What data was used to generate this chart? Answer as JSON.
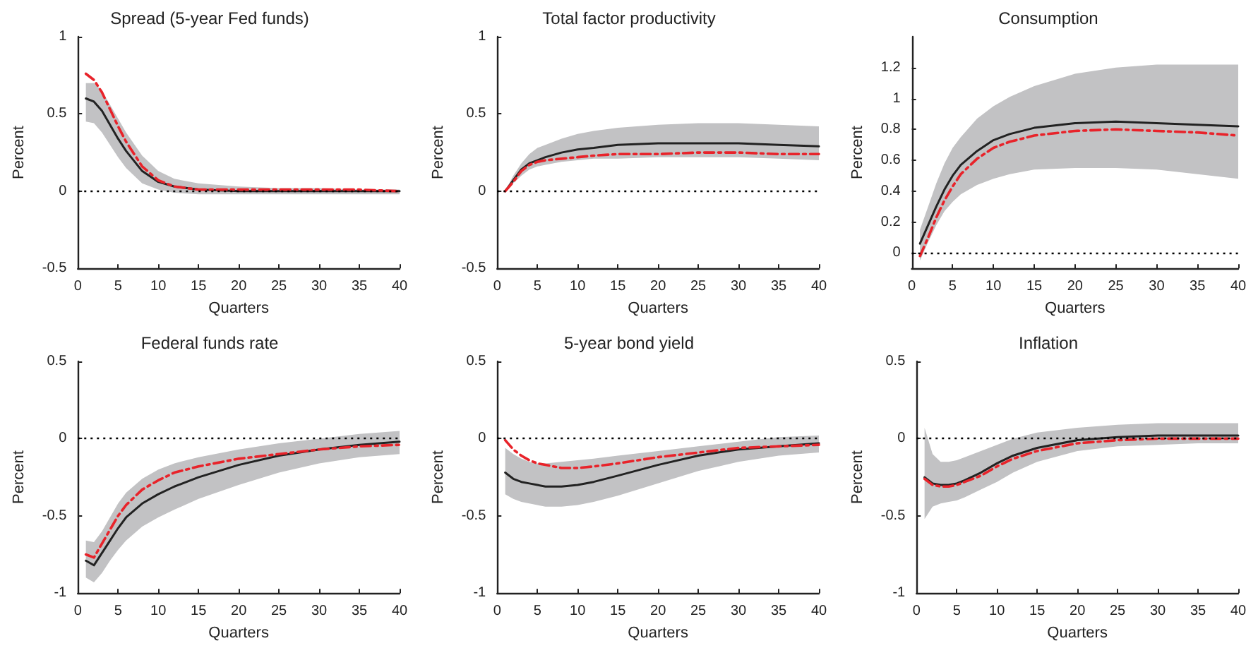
{
  "chart_data": [
    {
      "type": "line",
      "title": "Spread (5-year Fed funds)",
      "xlabel": "Quarters",
      "ylabel": "Percent",
      "xlim": [
        0,
        40
      ],
      "xticks": [
        0,
        5,
        10,
        15,
        20,
        25,
        30,
        35,
        40
      ],
      "ylim": [
        -0.5,
        1
      ],
      "yticks": [
        -0.5,
        0,
        0.5,
        1
      ],
      "grid": false,
      "marker": "none",
      "x": [
        1,
        2,
        3,
        4,
        5,
        6,
        8,
        10,
        12,
        15,
        20,
        25,
        30,
        35,
        40
      ],
      "ref_lines": [
        {
          "axis": "y",
          "value": 0,
          "line_style": "dotted",
          "color": "#000000"
        }
      ],
      "series": [
        {
          "color": "#222222",
          "line_style": "solid",
          "values": [
            0.6,
            0.58,
            0.52,
            0.43,
            0.34,
            0.26,
            0.13,
            0.06,
            0.03,
            0.01,
            0,
            0,
            0,
            0,
            0
          ],
          "lower": [
            0.45,
            0.44,
            0.38,
            0.3,
            0.22,
            0.15,
            0.05,
            0.01,
            -0.01,
            -0.02,
            -0.02,
            -0.02,
            -0.02,
            -0.02,
            -0.02
          ],
          "upper": [
            0.7,
            0.7,
            0.65,
            0.56,
            0.47,
            0.38,
            0.23,
            0.13,
            0.08,
            0.05,
            0.03,
            0.02,
            0.02,
            0.01,
            0.01
          ]
        },
        {
          "color": "#e8232a",
          "line_style": "dashed",
          "values": [
            0.76,
            0.72,
            0.64,
            0.53,
            0.42,
            0.32,
            0.16,
            0.07,
            0.03,
            0.01,
            0.01,
            0.01,
            0.01,
            0.01,
            0
          ]
        }
      ]
    },
    {
      "type": "line",
      "title": "Total factor productivity",
      "xlabel": "Quarters",
      "ylabel": "Percent",
      "xlim": [
        0,
        40
      ],
      "xticks": [
        0,
        5,
        10,
        15,
        20,
        25,
        30,
        35,
        40
      ],
      "ylim": [
        -0.5,
        1
      ],
      "yticks": [
        -0.5,
        0,
        0.5,
        1
      ],
      "grid": false,
      "marker": "none",
      "x": [
        1,
        2,
        3,
        4,
        5,
        6,
        8,
        10,
        12,
        15,
        20,
        25,
        30,
        35,
        40
      ],
      "ref_lines": [
        {
          "axis": "y",
          "value": 0,
          "line_style": "dotted",
          "color": "#000000"
        }
      ],
      "series": [
        {
          "color": "#222222",
          "line_style": "solid",
          "values": [
            0,
            0.07,
            0.14,
            0.18,
            0.2,
            0.22,
            0.25,
            0.27,
            0.28,
            0.3,
            0.31,
            0.31,
            0.31,
            0.3,
            0.29
          ],
          "lower": [
            0,
            0.05,
            0.1,
            0.14,
            0.16,
            0.17,
            0.19,
            0.2,
            0.21,
            0.21,
            0.22,
            0.22,
            0.22,
            0.21,
            0.2
          ],
          "upper": [
            0,
            0.1,
            0.18,
            0.24,
            0.28,
            0.3,
            0.34,
            0.37,
            0.39,
            0.41,
            0.43,
            0.44,
            0.44,
            0.43,
            0.42
          ]
        },
        {
          "color": "#e8232a",
          "line_style": "dashed",
          "values": [
            0,
            0.06,
            0.13,
            0.17,
            0.19,
            0.2,
            0.21,
            0.22,
            0.23,
            0.24,
            0.24,
            0.25,
            0.25,
            0.24,
            0.24
          ]
        }
      ]
    },
    {
      "type": "line",
      "title": "Consumption",
      "xlabel": "Quarters",
      "ylabel": "Percent",
      "xlim": [
        0,
        40
      ],
      "xticks": [
        0,
        5,
        10,
        15,
        20,
        25,
        30,
        35,
        40
      ],
      "ylim": [
        -0.1,
        1.4
      ],
      "yticks": [
        0,
        0.2,
        0.4,
        0.6,
        0.8,
        1,
        1.2
      ],
      "grid": false,
      "marker": "none",
      "x": [
        1,
        2,
        3,
        4,
        5,
        6,
        8,
        10,
        12,
        15,
        20,
        25,
        30,
        35,
        40
      ],
      "ref_lines": [
        {
          "axis": "y",
          "value": 0,
          "line_style": "dotted",
          "color": "#000000"
        }
      ],
      "series": [
        {
          "color": "#222222",
          "line_style": "solid",
          "values": [
            0.06,
            0.18,
            0.3,
            0.41,
            0.5,
            0.57,
            0.66,
            0.73,
            0.77,
            0.81,
            0.84,
            0.85,
            0.84,
            0.83,
            0.82
          ],
          "lower": [
            -0.05,
            0.07,
            0.18,
            0.27,
            0.33,
            0.38,
            0.44,
            0.48,
            0.51,
            0.54,
            0.55,
            0.55,
            0.54,
            0.51,
            0.48
          ],
          "upper": [
            0.15,
            0.3,
            0.45,
            0.58,
            0.68,
            0.75,
            0.87,
            0.95,
            1.01,
            1.08,
            1.16,
            1.2,
            1.22,
            1.22,
            1.22
          ]
        },
        {
          "color": "#e8232a",
          "line_style": "dashed",
          "values": [
            -0.02,
            0.1,
            0.23,
            0.34,
            0.43,
            0.51,
            0.61,
            0.68,
            0.72,
            0.76,
            0.79,
            0.8,
            0.79,
            0.78,
            0.76
          ]
        }
      ]
    },
    {
      "type": "line",
      "title": "Federal funds rate",
      "xlabel": "Quarters",
      "ylabel": "Percent",
      "xlim": [
        0,
        40
      ],
      "xticks": [
        0,
        5,
        10,
        15,
        20,
        25,
        30,
        35,
        40
      ],
      "ylim": [
        -1,
        0.5
      ],
      "yticks": [
        -1,
        -0.5,
        0,
        0.5
      ],
      "grid": false,
      "marker": "none",
      "x": [
        1,
        2,
        3,
        4,
        5,
        6,
        8,
        10,
        12,
        15,
        20,
        25,
        30,
        35,
        40
      ],
      "ref_lines": [
        {
          "axis": "y",
          "value": 0,
          "line_style": "dotted",
          "color": "#000000"
        }
      ],
      "series": [
        {
          "color": "#222222",
          "line_style": "solid",
          "values": [
            -0.79,
            -0.82,
            -0.74,
            -0.66,
            -0.58,
            -0.51,
            -0.42,
            -0.36,
            -0.31,
            -0.25,
            -0.17,
            -0.11,
            -0.07,
            -0.04,
            -0.02
          ],
          "lower": [
            -0.9,
            -0.93,
            -0.87,
            -0.79,
            -0.72,
            -0.66,
            -0.57,
            -0.51,
            -0.46,
            -0.39,
            -0.3,
            -0.22,
            -0.16,
            -0.12,
            -0.1
          ],
          "upper": [
            -0.66,
            -0.67,
            -0.6,
            -0.51,
            -0.42,
            -0.35,
            -0.26,
            -0.2,
            -0.16,
            -0.12,
            -0.07,
            -0.03,
            0,
            0.03,
            0.05
          ]
        },
        {
          "color": "#e8232a",
          "line_style": "dashed",
          "values": [
            -0.75,
            -0.77,
            -0.68,
            -0.59,
            -0.5,
            -0.43,
            -0.33,
            -0.27,
            -0.22,
            -0.18,
            -0.13,
            -0.1,
            -0.07,
            -0.05,
            -0.04
          ]
        }
      ]
    },
    {
      "type": "line",
      "title": "5-year bond yield",
      "xlabel": "Quarters",
      "ylabel": "Percent",
      "xlim": [
        0,
        40
      ],
      "xticks": [
        0,
        5,
        10,
        15,
        20,
        25,
        30,
        35,
        40
      ],
      "ylim": [
        -1,
        0.5
      ],
      "yticks": [
        -1,
        -0.5,
        0,
        0.5
      ],
      "grid": false,
      "marker": "none",
      "x": [
        1,
        2,
        3,
        4,
        5,
        6,
        8,
        10,
        12,
        15,
        20,
        25,
        30,
        35,
        40
      ],
      "ref_lines": [
        {
          "axis": "y",
          "value": 0,
          "line_style": "dotted",
          "color": "#000000"
        }
      ],
      "series": [
        {
          "color": "#222222",
          "line_style": "solid",
          "values": [
            -0.22,
            -0.26,
            -0.28,
            -0.29,
            -0.3,
            -0.31,
            -0.31,
            -0.3,
            -0.28,
            -0.24,
            -0.17,
            -0.11,
            -0.07,
            -0.05,
            -0.03
          ],
          "lower": [
            -0.36,
            -0.39,
            -0.41,
            -0.42,
            -0.43,
            -0.44,
            -0.44,
            -0.43,
            -0.41,
            -0.37,
            -0.29,
            -0.21,
            -0.15,
            -0.11,
            -0.09
          ],
          "upper": [
            -0.06,
            -0.1,
            -0.13,
            -0.15,
            -0.16,
            -0.16,
            -0.15,
            -0.14,
            -0.13,
            -0.11,
            -0.08,
            -0.05,
            -0.02,
            0.01,
            0.02
          ]
        },
        {
          "color": "#e8232a",
          "line_style": "dashed",
          "values": [
            -0.01,
            -0.07,
            -0.11,
            -0.14,
            -0.16,
            -0.17,
            -0.19,
            -0.19,
            -0.18,
            -0.16,
            -0.12,
            -0.09,
            -0.06,
            -0.05,
            -0.04
          ]
        }
      ]
    },
    {
      "type": "line",
      "title": "Inflation",
      "xlabel": "Quarters",
      "ylabel": "Percent",
      "xlim": [
        0,
        40
      ],
      "xticks": [
        0,
        5,
        10,
        15,
        20,
        25,
        30,
        35,
        40
      ],
      "ylim": [
        -1,
        0.5
      ],
      "yticks": [
        -1,
        -0.5,
        0,
        0.5
      ],
      "grid": false,
      "marker": "none",
      "x": [
        1,
        2,
        3,
        4,
        5,
        6,
        8,
        10,
        12,
        15,
        20,
        25,
        30,
        35,
        40
      ],
      "ref_lines": [
        {
          "axis": "y",
          "value": 0,
          "line_style": "dotted",
          "color": "#000000"
        }
      ],
      "series": [
        {
          "color": "#222222",
          "line_style": "solid",
          "values": [
            -0.25,
            -0.29,
            -0.3,
            -0.3,
            -0.29,
            -0.27,
            -0.22,
            -0.16,
            -0.11,
            -0.06,
            -0.01,
            0.01,
            0.02,
            0.02,
            0.02
          ],
          "lower": [
            -0.52,
            -0.44,
            -0.42,
            -0.41,
            -0.4,
            -0.38,
            -0.33,
            -0.28,
            -0.22,
            -0.15,
            -0.08,
            -0.05,
            -0.04,
            -0.03,
            -0.03
          ],
          "upper": [
            0.07,
            -0.1,
            -0.15,
            -0.15,
            -0.14,
            -0.12,
            -0.08,
            -0.04,
            0,
            0.04,
            0.07,
            0.09,
            0.1,
            0.1,
            0.1
          ]
        },
        {
          "color": "#e8232a",
          "line_style": "dashed",
          "values": [
            -0.26,
            -0.3,
            -0.31,
            -0.31,
            -0.3,
            -0.28,
            -0.24,
            -0.18,
            -0.13,
            -0.08,
            -0.03,
            -0.01,
            0,
            0,
            0
          ]
        }
      ]
    }
  ]
}
